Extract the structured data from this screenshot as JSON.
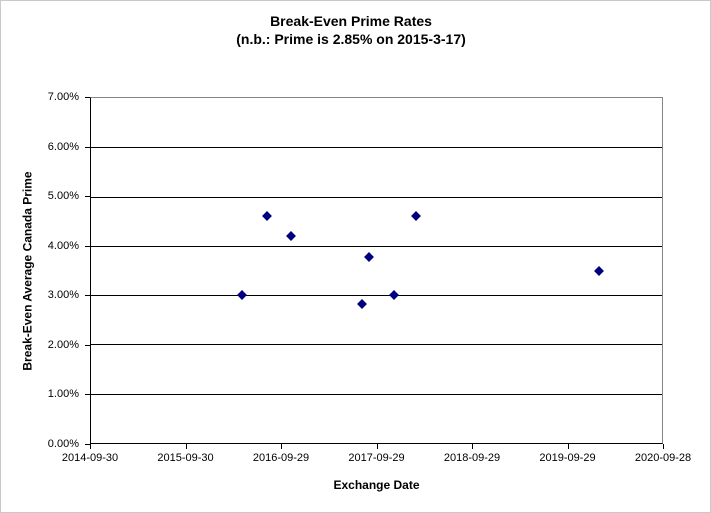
{
  "colors": {
    "marker": "#000080",
    "axis": "#000000",
    "plot_border": "#848484",
    "frame_border": "#c9c9c9",
    "background": "#ffffff"
  },
  "chart_data": {
    "type": "scatter",
    "title": "Break-Even Prime Rates",
    "subtitle": "(n.b.: Prime is 2.85% on 2015-3-17)",
    "xlabel": "Exchange Date",
    "ylabel": "Break-Even Average Canada Prime",
    "x_ticks": [
      "2014-09-30",
      "2015-09-30",
      "2016-09-29",
      "2017-09-29",
      "2018-09-29",
      "2019-09-29",
      "2020-09-28"
    ],
    "y_ticks": [
      "7.00%",
      "6.00%",
      "5.00%",
      "4.00%",
      "3.00%",
      "2.00%",
      "1.00%",
      "0.00%"
    ],
    "xlim": [
      "2014-09-30",
      "2020-09-28"
    ],
    "ylim": [
      0,
      7
    ],
    "grid": "horizontal",
    "legend": "none",
    "marker": {
      "shape": "diamond",
      "color": "#000080"
    },
    "points": [
      {
        "x": "2016-05-02",
        "y": 3.0
      },
      {
        "x": "2016-08-05",
        "y": 4.6
      },
      {
        "x": "2016-11-05",
        "y": 4.2
      },
      {
        "x": "2017-08-05",
        "y": 2.83
      },
      {
        "x": "2017-09-02",
        "y": 3.78
      },
      {
        "x": "2017-12-05",
        "y": 3.0
      },
      {
        "x": "2018-03-01",
        "y": 4.61
      },
      {
        "x": "2020-01-31",
        "y": 3.5
      }
    ]
  }
}
